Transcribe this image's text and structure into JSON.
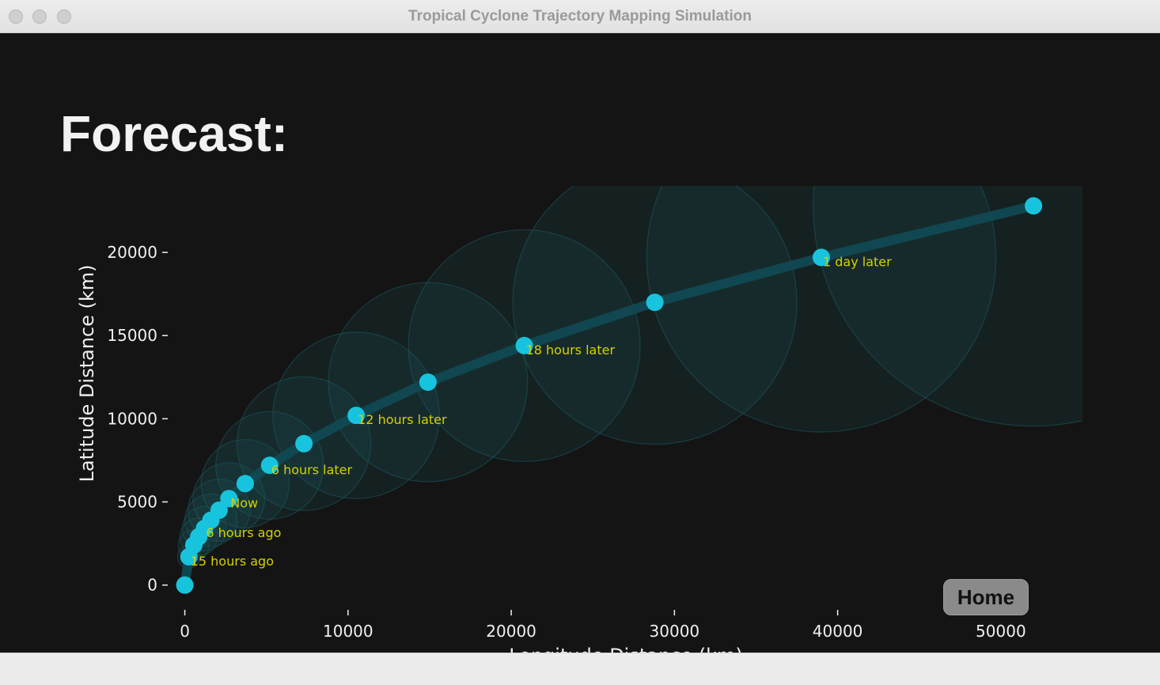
{
  "window": {
    "title": "Tropical Cyclone Trajectory Mapping Simulation"
  },
  "page": {
    "title": "Forecast:",
    "home_label": "Home"
  },
  "colors": {
    "background": "#141414",
    "point": "#18c4dd",
    "track": "#0f4a55",
    "cone": "#1b5a61",
    "label": "#d4d200",
    "axis_text": "#f0f0f0"
  },
  "chart_data": {
    "type": "scatter",
    "title": "",
    "xlabel": "Longitude Distance (km)",
    "ylabel": "Latitude Distance (km)",
    "xlim": [
      -900,
      55000
    ],
    "ylim": [
      -1300,
      24000
    ],
    "xticks": [
      0,
      10000,
      20000,
      30000,
      40000,
      50000
    ],
    "yticks": [
      0,
      5000,
      10000,
      15000,
      20000
    ],
    "grid": false,
    "points": [
      {
        "x": 0,
        "y": 0,
        "r": 400,
        "label": ""
      },
      {
        "x": 250,
        "y": 1700,
        "r": 700,
        "label": "15 hours ago"
      },
      {
        "x": 550,
        "y": 2400,
        "r": 950,
        "label": ""
      },
      {
        "x": 850,
        "y": 2900,
        "r": 1150,
        "label": ""
      },
      {
        "x": 1200,
        "y": 3400,
        "r": 1350,
        "label": "6 hours ago"
      },
      {
        "x": 1600,
        "y": 3900,
        "r": 1600,
        "label": ""
      },
      {
        "x": 2100,
        "y": 4500,
        "r": 1900,
        "label": ""
      },
      {
        "x": 2700,
        "y": 5200,
        "r": 2200,
        "label": "Now"
      },
      {
        "x": 3700,
        "y": 6100,
        "r": 2700,
        "label": ""
      },
      {
        "x": 5200,
        "y": 7200,
        "r": 3300,
        "label": "6 hours later"
      },
      {
        "x": 7300,
        "y": 8500,
        "r": 4100,
        "label": ""
      },
      {
        "x": 10500,
        "y": 10200,
        "r": 5100,
        "label": "12 hours later"
      },
      {
        "x": 14900,
        "y": 12200,
        "r": 6100,
        "label": ""
      },
      {
        "x": 20800,
        "y": 14400,
        "r": 7100,
        "label": "18 hours later"
      },
      {
        "x": 28800,
        "y": 17000,
        "r": 8700,
        "label": ""
      },
      {
        "x": 39000,
        "y": 19700,
        "r": 10700,
        "label": "1 day later"
      },
      {
        "x": 52000,
        "y": 22800,
        "r": 13500,
        "label": ""
      }
    ]
  }
}
